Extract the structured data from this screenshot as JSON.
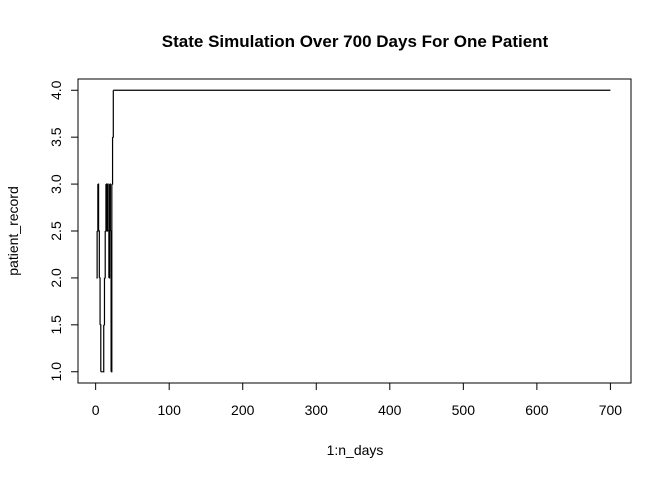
{
  "chart_data": {
    "type": "line",
    "title": "State Simulation Over 700 Days For One Patient",
    "xlabel": "1:n_days",
    "ylabel": "patient_record",
    "xlim": [
      -24,
      728
    ],
    "ylim": [
      0.88,
      4.12
    ],
    "xticks": [
      0,
      100,
      200,
      300,
      400,
      500,
      600,
      700
    ],
    "xtick_labels": [
      "0",
      "100",
      "200",
      "300",
      "400",
      "500",
      "600",
      "700"
    ],
    "yticks": [
      1.0,
      1.5,
      2.0,
      2.5,
      3.0,
      3.5,
      4.0
    ],
    "ytick_labels": [
      "1.0",
      "1.5",
      "2.0",
      "2.5",
      "3.0",
      "3.5",
      "4.0"
    ],
    "grid": false,
    "legend": "none",
    "line_color": "#000000",
    "series": [
      {
        "x": [
          1,
          2,
          3,
          4,
          5,
          6,
          7,
          8,
          9,
          10,
          11,
          12,
          13,
          14,
          15,
          16,
          17,
          18,
          19,
          20,
          21,
          22,
          23,
          24,
          25,
          700
        ],
        "values": [
          2,
          2.5,
          3,
          2.5,
          2,
          1.5,
          1,
          1,
          1,
          1,
          1.5,
          2,
          2.5,
          3,
          2.5,
          3,
          2.5,
          2,
          3,
          2.5,
          1,
          3,
          3.5,
          4,
          4,
          4
        ]
      }
    ]
  }
}
